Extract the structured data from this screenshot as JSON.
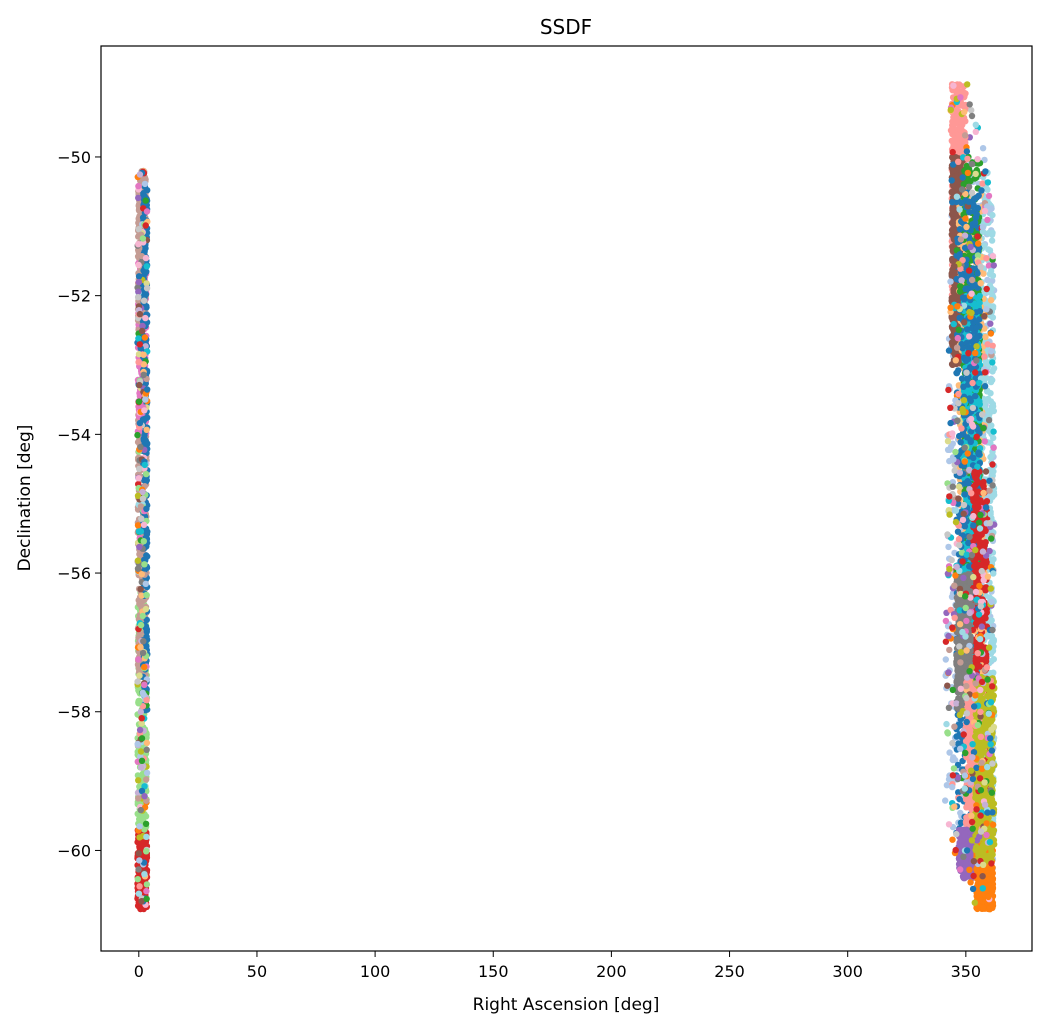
{
  "chart_data": {
    "type": "scatter",
    "title": "SSDF",
    "xlabel": "Right Ascension [deg]",
    "ylabel": "Declination [deg]",
    "xlim": [
      -16,
      378
    ],
    "ylim": [
      -61.45,
      -48.4
    ],
    "xticks": [
      0,
      50,
      100,
      150,
      200,
      250,
      300,
      350
    ],
    "yticks": [
      -60,
      -58,
      -56,
      -54,
      -52,
      -50
    ],
    "xtick_labels": [
      "0",
      "50",
      "100",
      "150",
      "200",
      "250",
      "300",
      "350"
    ],
    "ytick_labels": [
      "−60",
      "−58",
      "−56",
      "−54",
      "−52",
      "−50"
    ],
    "grid": false,
    "legend": "none",
    "palette": [
      "#1f77b4",
      "#aec7e8",
      "#ff7f0e",
      "#ffbb78",
      "#2ca02c",
      "#98df8a",
      "#d62728",
      "#ff9896",
      "#9467bd",
      "#c5b0d5",
      "#8c564b",
      "#c49c94",
      "#e377c2",
      "#f7b6d2",
      "#7f7f7f",
      "#c7c7c7",
      "#bcbd22",
      "#dbdb8d",
      "#17becf",
      "#9edae5"
    ],
    "series": [
      {
        "color": "#d62728",
        "ra_range": [
          -0.6,
          3.5
        ],
        "dec_range": [
          -60.85,
          -59.7
        ]
      },
      {
        "color": "#98df8a",
        "ra_range": [
          -0.5,
          3.4
        ],
        "dec_range": [
          -59.7,
          -56.2
        ]
      },
      {
        "color": "#c49c94",
        "ra_range": [
          -0.4,
          3.3
        ],
        "dec_range": [
          -57.5,
          -53.5
        ]
      },
      {
        "color": "#e377c2",
        "ra_range": [
          -0.4,
          3.2
        ],
        "dec_range": [
          -54.0,
          -51.5
        ]
      },
      {
        "color": "#c49c94",
        "ra_range": [
          -0.3,
          3.1
        ],
        "dec_range": [
          -52.5,
          -50.2
        ]
      },
      {
        "color": "#1f77b4",
        "ra_range": [
          1.6,
          3.6
        ],
        "dec_range": [
          -58.0,
          -50.4
        ]
      },
      {
        "color": "#aec7e8",
        "ra_range": [
          341.0,
          362.0
        ],
        "dec_range": [
          -60.3,
          -50.0
        ]
      },
      {
        "color": "#9edae5",
        "ra_range": [
          356.0,
          362.0
        ],
        "dec_range": [
          -60.0,
          -50.2
        ]
      },
      {
        "color": "#ff9896",
        "ra_range": [
          344.0,
          350.0
        ],
        "dec_range": [
          -52.0,
          -48.95
        ]
      },
      {
        "color": "#8c564b",
        "ra_range": [
          344.0,
          349.0
        ],
        "dec_range": [
          -53.0,
          -50.0
        ]
      },
      {
        "color": "#ffbb78",
        "ra_range": [
          347.0,
          358.0
        ],
        "dec_range": [
          -57.5,
          -50.5
        ]
      },
      {
        "color": "#2ca02c",
        "ra_range": [
          349.0,
          356.0
        ],
        "dec_range": [
          -56.0,
          -50.0
        ]
      },
      {
        "color": "#17becf",
        "ra_range": [
          349.0,
          356.0
        ],
        "dec_range": [
          -57.5,
          -52.0
        ]
      },
      {
        "color": "#1f77b4",
        "ra_range": [
          346.0,
          356.0
        ],
        "dec_range": [
          -60.0,
          -50.5
        ]
      },
      {
        "color": "#d62728",
        "ra_range": [
          353.0,
          359.0
        ],
        "dec_range": [
          -59.5,
          -54.5
        ]
      },
      {
        "color": "#7f7f7f",
        "ra_range": [
          346.0,
          352.0
        ],
        "dec_range": [
          -58.0,
          -56.0
        ]
      },
      {
        "color": "#ff9896",
        "ra_range": [
          350.0,
          358.0
        ],
        "dec_range": [
          -60.0,
          -57.5
        ]
      },
      {
        "color": "#9467bd",
        "ra_range": [
          347.0,
          356.0
        ],
        "dec_range": [
          -60.4,
          -59.7
        ]
      },
      {
        "color": "#ff7f0e",
        "ra_range": [
          354.5,
          361.5
        ],
        "dec_range": [
          -60.85,
          -59.9
        ]
      },
      {
        "color": "#bcbd22",
        "ra_range": [
          354.0,
          362.0
        ],
        "dec_range": [
          -60.2,
          -57.5
        ]
      }
    ]
  }
}
